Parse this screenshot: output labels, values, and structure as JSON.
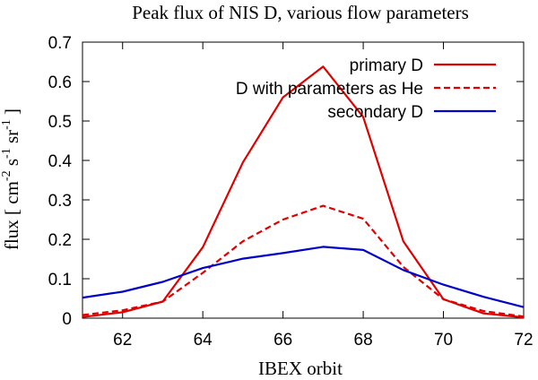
{
  "chart_data": {
    "type": "line",
    "title": "Peak flux of NIS D, various flow parameters",
    "xlabel": "IBEX orbit",
    "ylabel": {
      "prefix": "flux [ cm",
      "exp1": "-2",
      "mid1": " s",
      "exp2": "-1",
      "mid2": " sr",
      "exp3": "-1",
      "suffix": " ]"
    },
    "xlim": [
      61,
      72
    ],
    "ylim": [
      0,
      0.7
    ],
    "xticks": [
      62,
      64,
      66,
      68,
      70,
      72
    ],
    "yticks": [
      0,
      0.1,
      0.2,
      0.3,
      0.4,
      0.5,
      0.6,
      0.7
    ],
    "xtick_labels": [
      "62",
      "64",
      "66",
      "68",
      "70",
      "72"
    ],
    "ytick_labels": [
      "0",
      "0.1",
      "0.2",
      "0.3",
      "0.4",
      "0.5",
      "0.6",
      "0.7"
    ],
    "legend_position": "top-right",
    "series": [
      {
        "name": "primary D",
        "color": "#e00000",
        "dash": "solid",
        "x": [
          61,
          62,
          63,
          64,
          65,
          66,
          67,
          68,
          69,
          70,
          71,
          72
        ],
        "y": [
          0.003,
          0.015,
          0.042,
          0.18,
          0.395,
          0.56,
          0.638,
          0.51,
          0.195,
          0.048,
          0.012,
          0.002
        ]
      },
      {
        "name": "D with parameters as He",
        "color": "#e00000",
        "dash": "dashed",
        "x": [
          61,
          62,
          63,
          64,
          65,
          66,
          67,
          68,
          69,
          70,
          71,
          72
        ],
        "y": [
          0.008,
          0.02,
          0.042,
          0.115,
          0.195,
          0.25,
          0.285,
          0.252,
          0.13,
          0.048,
          0.018,
          0.004
        ]
      },
      {
        "name": "secondary D",
        "color": "#0000cc",
        "dash": "solid",
        "x": [
          61,
          62,
          63,
          64,
          65,
          66,
          67,
          68,
          69,
          70,
          71,
          72
        ],
        "y": [
          0.052,
          0.067,
          0.092,
          0.127,
          0.151,
          0.165,
          0.181,
          0.173,
          0.122,
          0.085,
          0.054,
          0.028
        ]
      }
    ]
  }
}
